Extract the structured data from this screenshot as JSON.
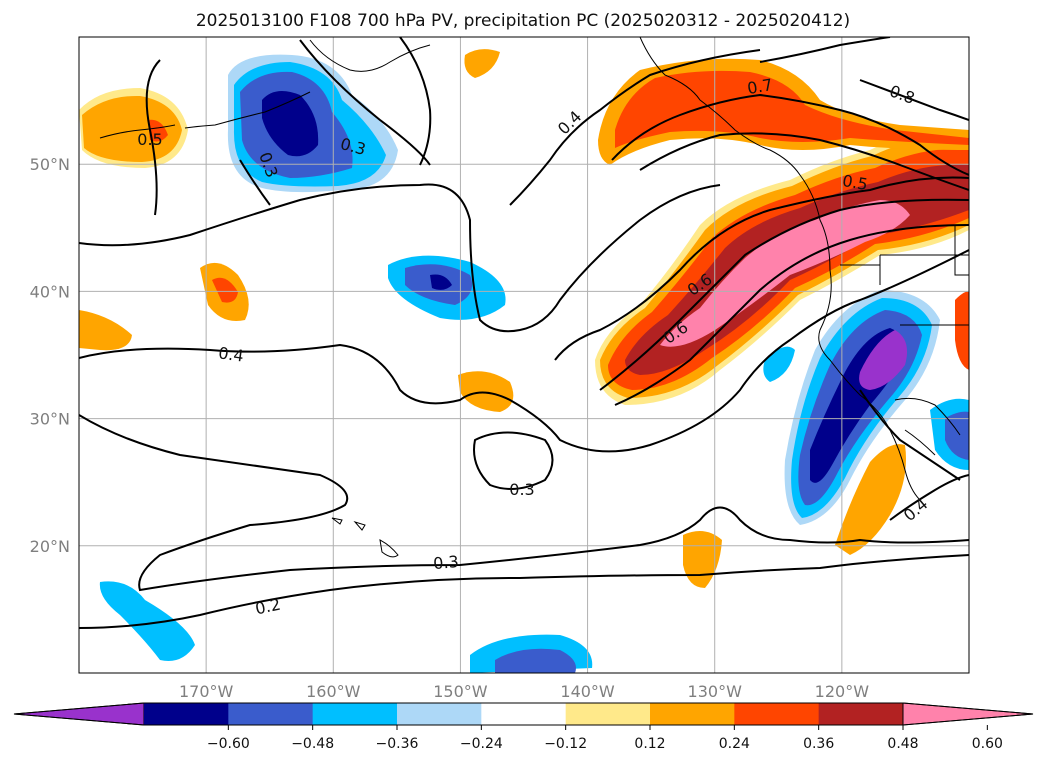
{
  "title": "2025013100 F108 700 hPa PV, precipitation PC (2025020312 - 2025020412)",
  "map": {
    "lon_range": [
      -180,
      -110
    ],
    "lat_range": [
      10,
      60
    ],
    "lon_ticks": [
      {
        "lon": -170,
        "label": "170°W"
      },
      {
        "lon": -160,
        "label": "160°W"
      },
      {
        "lon": -150,
        "label": "150°W"
      },
      {
        "lon": -140,
        "label": "140°W"
      },
      {
        "lon": -130,
        "label": "130°W"
      },
      {
        "lon": -120,
        "label": "120°W"
      }
    ],
    "lat_ticks": [
      {
        "lat": 20,
        "label": "20°N"
      },
      {
        "lat": 30,
        "label": "30°N"
      },
      {
        "lat": 40,
        "label": "40°N"
      },
      {
        "lat": 50,
        "label": "50°N"
      }
    ],
    "contour_labels": [
      "0.2",
      "0.3",
      "0.3",
      "0.3",
      "0.3",
      "0.4",
      "0.4",
      "0.4",
      "0.5",
      "0.5",
      "0.6",
      "0.6",
      "0.7",
      "0.8"
    ]
  },
  "colorbar": {
    "tick_labels": [
      "−0.60",
      "−0.48",
      "−0.36",
      "−0.24",
      "−0.12",
      "0.12",
      "0.24",
      "0.36",
      "0.48",
      "0.60"
    ],
    "colors": [
      "#9932cc",
      "#00008b",
      "#3a5ccc",
      "#00bfff",
      "#add8f7",
      "#ffffff",
      "#ffe98a",
      "#ffa500",
      "#ff4500",
      "#b22222",
      "#ff82ab"
    ],
    "extend": "both"
  }
}
